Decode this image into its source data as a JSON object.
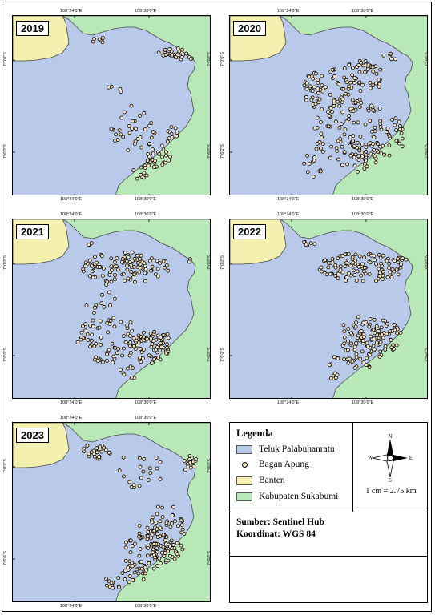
{
  "panels": [
    {
      "year": "2019",
      "top_lon": [
        "108°24'0\"E",
        "108°30'0\"E"
      ],
      "bot_lon": [
        "108°24'0\"E",
        "108°30'0\"E"
      ],
      "lat": [
        "7°0'0\"S",
        "7°6'0\"S"
      ]
    },
    {
      "year": "2020",
      "top_lon": [
        "108°24'0\"E",
        "108°30'0\"E"
      ],
      "bot_lon": [
        "108°24'0\"E",
        "108°30'0\"E"
      ],
      "lat": [
        "7°0'0\"S",
        "7°6'0\"S"
      ]
    },
    {
      "year": "2021",
      "top_lon": [
        "108°24'0\"E",
        "108°30'0\"E"
      ],
      "bot_lon": [
        "108°24'0\"E",
        "108°30'0\"E"
      ],
      "lat": [
        "7°0'0\"S",
        "7°6'0\"S"
      ]
    },
    {
      "year": "2022",
      "top_lon": [
        "108°24'0\"E",
        "108°30'0\"E"
      ],
      "bot_lon": [
        "108°24'0\"E",
        "108°30'0\"E"
      ],
      "lat": [
        "7°0'0\"S",
        "7°6'0\"S"
      ]
    },
    {
      "year": "2023",
      "top_lon": [
        "108°24'0\"E",
        "108°30'0\"E"
      ],
      "bot_lon": [
        "108°24'0\"E",
        "108°30'0\"E"
      ],
      "lat": [
        "7°0'0\"S",
        "7°6'0\"S"
      ]
    }
  ],
  "legend": {
    "title": "Legenda",
    "items": [
      {
        "label": "Teluk Palabuhanratu",
        "color": "#b8c9e9"
      },
      {
        "label": "Bagan Apung",
        "color": "#f4e6c5"
      },
      {
        "label": "Banten",
        "color": "#f4f0b0"
      },
      {
        "label": "Kabupaten Sukabumi",
        "color": "#b8e8b8"
      }
    ],
    "north": {
      "n": "N",
      "s": "S",
      "e": "E",
      "w": "W"
    },
    "scale": "1 cm = 2.75 km",
    "source": "Sumber: Sentinel Hub",
    "coord": "Koordinat: WGS 84"
  },
  "colors": {
    "sea": "#b8c9e9",
    "banten": "#f4f0b0",
    "sukabumi": "#b8e8b8",
    "point_fill": "#f4e6c5",
    "point_stroke": "#000000"
  }
}
